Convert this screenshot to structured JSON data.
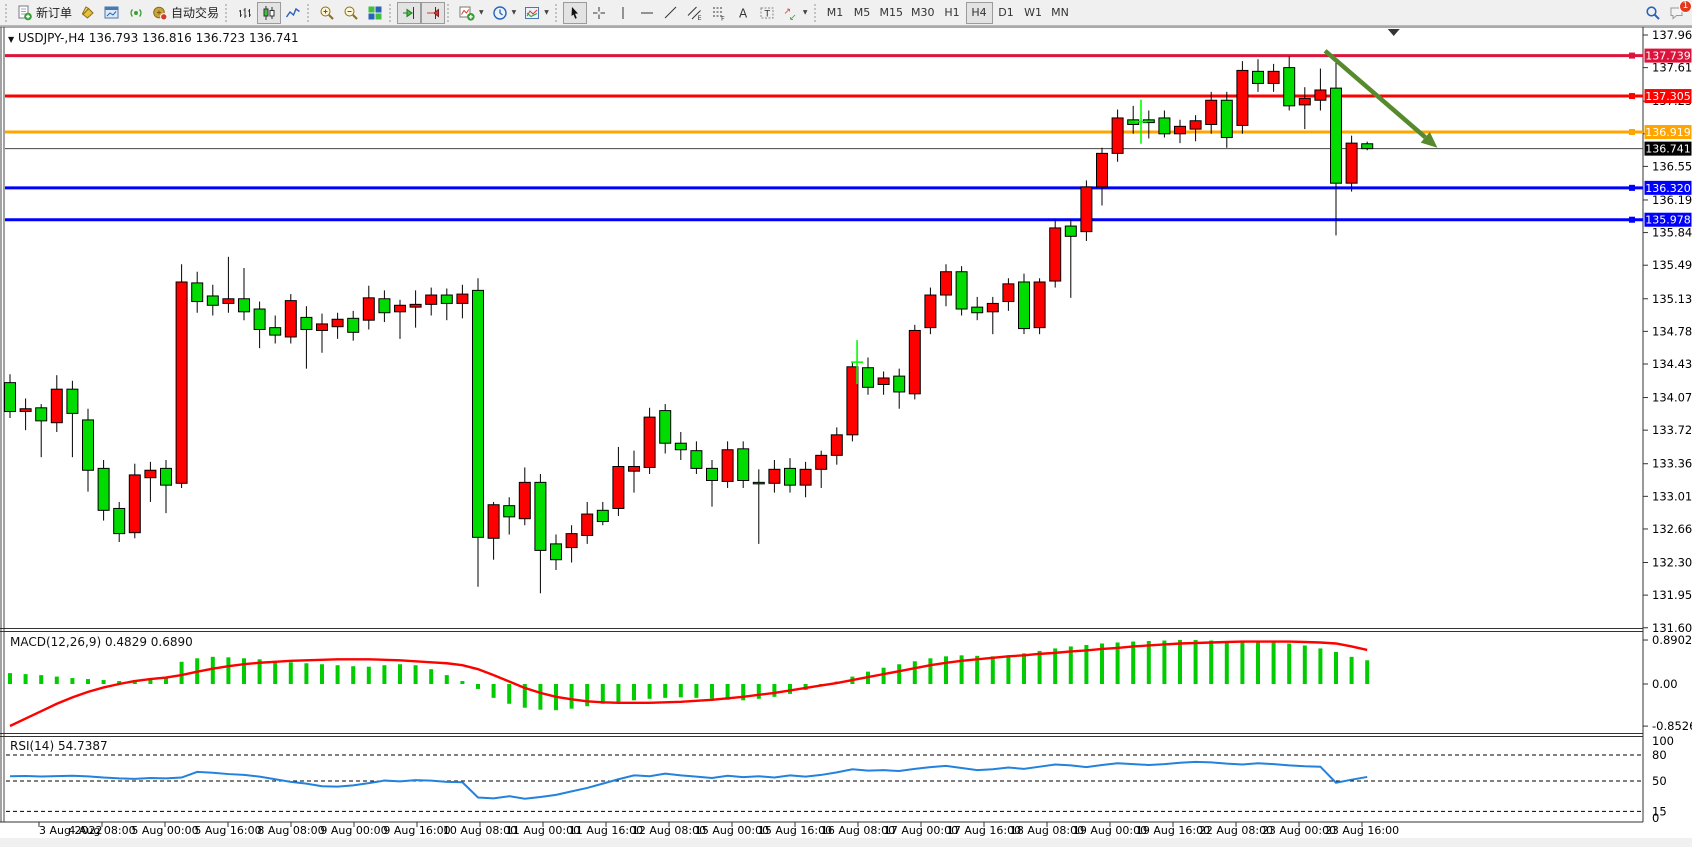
{
  "toolbar": {
    "groups": [
      {
        "items": [
          {
            "name": "new-order-button",
            "icon": "new-order-icon",
            "label": "新订单"
          },
          {
            "name": "styles-button",
            "icon": "paint-bucket-icon"
          },
          {
            "name": "market-watch-button",
            "icon": "chart-window-icon"
          },
          {
            "name": "broadcast-button",
            "icon": "broadcast-icon"
          },
          {
            "name": "auto-trading-button",
            "icon": "auto-trading-icon",
            "label": "自动交易"
          }
        ]
      },
      {
        "items": [
          {
            "name": "bar-chart-button",
            "icon": "bar-chart-icon"
          },
          {
            "name": "candlestick-button",
            "icon": "candlestick-icon",
            "pressed": true
          },
          {
            "name": "line-chart-button",
            "icon": "line-chart-icon"
          }
        ]
      },
      {
        "items": [
          {
            "name": "zoom-in-button",
            "icon": "zoom-in-icon"
          },
          {
            "name": "zoom-out-button",
            "icon": "zoom-out-icon"
          },
          {
            "name": "tile-windows-button",
            "icon": "tile-windows-icon"
          }
        ]
      },
      {
        "items": [
          {
            "name": "auto-scroll-button",
            "icon": "auto-scroll-icon",
            "pressed": true
          },
          {
            "name": "chart-shift-button",
            "icon": "chart-shift-icon",
            "pressed": true
          }
        ]
      },
      {
        "items": [
          {
            "name": "indicators-button",
            "icon": "indicators-icon",
            "caret": true
          },
          {
            "name": "periods-button",
            "icon": "periods-icon",
            "caret": true
          },
          {
            "name": "templates-button",
            "icon": "templates-icon",
            "caret": true
          }
        ]
      },
      {
        "items": [
          {
            "name": "cursor-button",
            "icon": "cursor-icon",
            "pressed": true
          },
          {
            "name": "crosshair-button",
            "icon": "crosshair-icon"
          },
          {
            "name": "vertical-line-button",
            "icon": "vertical-line-icon"
          },
          {
            "name": "horizontal-line-button",
            "icon": "horizontal-line-icon"
          },
          {
            "name": "trendline-button",
            "icon": "trendline-icon"
          },
          {
            "name": "channel-button",
            "icon": "channel-icon"
          },
          {
            "name": "fibonacci-button",
            "icon": "fibonacci-icon"
          },
          {
            "name": "text-button",
            "icon": "text-icon"
          },
          {
            "name": "label-button",
            "icon": "label-icon"
          },
          {
            "name": "arrows-button",
            "icon": "arrows-icon",
            "caret": true
          }
        ]
      }
    ],
    "timeframes": [
      {
        "label": "M1"
      },
      {
        "label": "M5"
      },
      {
        "label": "M15"
      },
      {
        "label": "M30"
      },
      {
        "label": "H1"
      },
      {
        "label": "H4",
        "pressed": true
      },
      {
        "label": "D1"
      },
      {
        "label": "W1"
      },
      {
        "label": "MN"
      }
    ],
    "right": [
      {
        "name": "search-button",
        "icon": "search-icon"
      },
      {
        "name": "chat-button",
        "icon": "chat-icon",
        "badge": "1"
      }
    ]
  },
  "header": {
    "title": "USDJPY-,H4",
    "ohlc": "136.793 136.816 136.723 136.741"
  },
  "macd_label": {
    "name": "MACD(12,26,9)",
    "values": "0.4829 0.6890"
  },
  "rsi_label": {
    "name": "RSI(14)",
    "values": "54.7387"
  },
  "colors": {
    "bull": "#FF0000",
    "bear": "#00DC00",
    "wick": "#000000",
    "macd_bar": "#00CC00",
    "macd_signal": "#FF0000",
    "rsi_line": "#2282DD",
    "arrow": "#578A2E",
    "marker": "#00FF00",
    "bid_label_bg": "#000000"
  },
  "price_axis": {
    "ticks": [
      "137.960",
      "137.610",
      "137.250",
      "136.900",
      "136.550",
      "136.190",
      "135.840",
      "135.490",
      "135.130",
      "134.780",
      "134.430",
      "134.070",
      "133.720",
      "133.360",
      "133.010",
      "132.660",
      "132.300",
      "131.950",
      "131.600"
    ]
  },
  "macd_axis": {
    "ticks": [
      {
        "v": 0.8902,
        "label": "0.8902"
      },
      {
        "v": 0.0,
        "label": "0.00"
      },
      {
        "v": -0.8526,
        "label": "-0.8526"
      }
    ]
  },
  "rsi_axis": {
    "ticks": [
      {
        "v": 100,
        "label": "100"
      },
      {
        "v": 80,
        "label": "80"
      },
      {
        "v": 50,
        "label": "50"
      },
      {
        "v": 15,
        "label": "15"
      },
      {
        "v": 0,
        "label": "0"
      }
    ],
    "dashed_levels": [
      80,
      50,
      15
    ]
  },
  "time_axis": [
    "3 Aug 2022",
    "4 Aug 08:00",
    "5 Aug 00:00",
    "5 Aug 16:00",
    "8 Aug 08:00",
    "9 Aug 00:00",
    "9 Aug 16:00",
    "10 Aug 08:00",
    "11 Aug 00:00",
    "11 Aug 16:00",
    "12 Aug 08:00",
    "15 Aug 00:00",
    "15 Aug 16:00",
    "16 Aug 08:00",
    "17 Aug 00:00",
    "17 Aug 16:00",
    "18 Aug 08:00",
    "19 Aug 00:00",
    "19 Aug 16:00",
    "22 Aug 08:00",
    "23 Aug 00:00",
    "23 Aug 16:00"
  ],
  "chart_data": {
    "type": "candlestick",
    "symbol": "USDJPY-",
    "timeframe": "H4",
    "current_bar": {
      "open": 136.793,
      "high": 136.816,
      "low": 136.723,
      "close": 136.741
    },
    "ylim": [
      131.6,
      137.96
    ],
    "levels": [
      {
        "price": 137.739,
        "label": "137.739",
        "color": "#DC143C"
      },
      {
        "price": 137.305,
        "label": "137.305",
        "color": "#FF0000"
      },
      {
        "price": 136.919,
        "label": "136.919",
        "color": "#FFA500"
      },
      {
        "price": 136.32,
        "label": "136.320",
        "color": "#0000FF"
      },
      {
        "price": 135.978,
        "label": "135.978",
        "color": "#0000FF"
      }
    ],
    "bid": {
      "price": 136.741,
      "label": "136.741"
    },
    "candles": [
      [
        134.23,
        134.32,
        133.85,
        133.92
      ],
      [
        133.92,
        134.06,
        133.72,
        133.95
      ],
      [
        133.96,
        134.0,
        133.43,
        133.82
      ],
      [
        133.8,
        134.31,
        133.7,
        134.16
      ],
      [
        134.16,
        134.25,
        133.43,
        133.9
      ],
      [
        133.83,
        133.95,
        133.06,
        133.29
      ],
      [
        133.31,
        133.4,
        132.75,
        132.86
      ],
      [
        132.88,
        132.95,
        132.52,
        132.61
      ],
      [
        132.62,
        133.36,
        132.56,
        133.24
      ],
      [
        133.21,
        133.38,
        132.95,
        133.29
      ],
      [
        133.31,
        133.4,
        132.83,
        133.13
      ],
      [
        133.15,
        135.5,
        133.1,
        135.31
      ],
      [
        135.3,
        135.42,
        134.98,
        135.1
      ],
      [
        135.16,
        135.28,
        134.95,
        135.06
      ],
      [
        135.08,
        135.58,
        134.98,
        135.13
      ],
      [
        135.13,
        135.46,
        134.9,
        134.99
      ],
      [
        135.02,
        135.1,
        134.6,
        134.8
      ],
      [
        134.82,
        134.95,
        134.65,
        134.74
      ],
      [
        134.72,
        135.18,
        134.65,
        135.11
      ],
      [
        134.93,
        135.05,
        134.38,
        134.8
      ],
      [
        134.79,
        134.97,
        134.55,
        134.86
      ],
      [
        134.83,
        134.98,
        134.7,
        134.91
      ],
      [
        134.92,
        135.0,
        134.68,
        134.77
      ],
      [
        134.9,
        135.27,
        134.8,
        135.14
      ],
      [
        135.13,
        135.22,
        134.88,
        134.98
      ],
      [
        134.99,
        135.12,
        134.7,
        135.06
      ],
      [
        135.04,
        135.22,
        134.82,
        135.07
      ],
      [
        135.07,
        135.25,
        134.95,
        135.17
      ],
      [
        135.17,
        135.24,
        134.9,
        135.08
      ],
      [
        135.08,
        135.28,
        134.92,
        135.18
      ],
      [
        135.22,
        135.35,
        132.04,
        132.57
      ],
      [
        132.56,
        132.95,
        132.33,
        132.92
      ],
      [
        132.91,
        133.0,
        132.6,
        132.79
      ],
      [
        132.77,
        133.32,
        132.7,
        133.16
      ],
      [
        133.16,
        133.25,
        131.97,
        132.43
      ],
      [
        132.5,
        132.6,
        132.22,
        132.33
      ],
      [
        132.46,
        132.7,
        132.3,
        132.61
      ],
      [
        132.59,
        132.95,
        132.5,
        132.82
      ],
      [
        132.86,
        132.95,
        132.7,
        132.74
      ],
      [
        132.88,
        133.54,
        132.8,
        133.33
      ],
      [
        133.28,
        133.5,
        133.05,
        133.33
      ],
      [
        133.32,
        133.96,
        133.25,
        133.86
      ],
      [
        133.93,
        134.0,
        133.47,
        133.58
      ],
      [
        133.58,
        133.7,
        133.4,
        133.51
      ],
      [
        133.5,
        133.6,
        133.25,
        133.31
      ],
      [
        133.31,
        133.4,
        132.9,
        133.18
      ],
      [
        133.17,
        133.6,
        133.1,
        133.51
      ],
      [
        133.52,
        133.6,
        133.1,
        133.18
      ],
      [
        133.16,
        133.3,
        132.5,
        133.15
      ],
      [
        133.15,
        133.4,
        133.05,
        133.3
      ],
      [
        133.31,
        133.42,
        133.05,
        133.13
      ],
      [
        133.13,
        133.38,
        133.0,
        133.3
      ],
      [
        133.3,
        133.5,
        133.1,
        133.45
      ],
      [
        133.45,
        133.75,
        133.35,
        133.67
      ],
      [
        133.67,
        134.45,
        133.6,
        134.4
      ],
      [
        134.39,
        134.5,
        134.1,
        134.18
      ],
      [
        134.21,
        134.35,
        134.1,
        134.28
      ],
      [
        134.3,
        134.38,
        133.95,
        134.13
      ],
      [
        134.11,
        134.85,
        134.05,
        134.79
      ],
      [
        134.82,
        135.25,
        134.75,
        135.17
      ],
      [
        135.17,
        135.5,
        135.05,
        135.42
      ],
      [
        135.42,
        135.48,
        134.95,
        135.02
      ],
      [
        135.04,
        135.15,
        134.9,
        134.98
      ],
      [
        134.99,
        135.15,
        134.75,
        135.08
      ],
      [
        135.1,
        135.35,
        135.0,
        135.29
      ],
      [
        135.31,
        135.4,
        134.75,
        134.81
      ],
      [
        134.82,
        135.35,
        134.75,
        135.31
      ],
      [
        135.32,
        135.98,
        135.25,
        135.89
      ],
      [
        135.91,
        135.98,
        135.14,
        135.8
      ],
      [
        135.85,
        136.4,
        135.75,
        136.33
      ],
      [
        136.33,
        136.75,
        136.13,
        136.69
      ],
      [
        136.69,
        137.16,
        136.6,
        137.07
      ],
      [
        137.05,
        137.2,
        136.9,
        137.0
      ],
      [
        137.05,
        137.15,
        136.85,
        137.02
      ],
      [
        137.07,
        137.15,
        136.86,
        136.9
      ],
      [
        136.9,
        137.05,
        136.8,
        136.98
      ],
      [
        136.95,
        137.1,
        136.82,
        137.04
      ],
      [
        137.0,
        137.35,
        136.9,
        137.26
      ],
      [
        137.26,
        137.35,
        136.75,
        136.86
      ],
      [
        136.99,
        137.68,
        136.9,
        137.58
      ],
      [
        137.57,
        137.7,
        137.35,
        137.44
      ],
      [
        137.44,
        137.65,
        137.35,
        137.57
      ],
      [
        137.61,
        137.73,
        137.15,
        137.2
      ],
      [
        137.21,
        137.4,
        136.95,
        137.28
      ],
      [
        137.26,
        137.6,
        137.15,
        137.37
      ],
      [
        137.39,
        137.66,
        135.81,
        136.37
      ],
      [
        136.37,
        136.88,
        136.28,
        136.8
      ],
      [
        136.793,
        136.816,
        136.723,
        136.741
      ]
    ],
    "markers": [
      {
        "bar": 54.3,
        "price": 134.45
      },
      {
        "bar": 72.5,
        "price": 137.03
      }
    ],
    "trend_arrow": {
      "from_bar": 84.3,
      "from_price": 137.79,
      "to_bar": 91.5,
      "to_price": 136.75
    },
    "shift_marker_bar": 88.7,
    "indicators": [
      {
        "type": "MACD",
        "params": [
          12,
          26,
          9
        ],
        "current": [
          0.4829,
          0.689
        ],
        "range": {
          "max": 0.8902,
          "min": -0.8526
        },
        "histogram": [
          0.22,
          0.2,
          0.18,
          0.15,
          0.12,
          0.1,
          0.08,
          0.06,
          0.08,
          0.1,
          0.12,
          0.45,
          0.52,
          0.55,
          0.54,
          0.52,
          0.5,
          0.47,
          0.44,
          0.42,
          0.4,
          0.38,
          0.36,
          0.35,
          0.38,
          0.4,
          0.38,
          0.3,
          0.18,
          0.06,
          -0.1,
          -0.28,
          -0.4,
          -0.48,
          -0.52,
          -0.53,
          -0.5,
          -0.45,
          -0.4,
          -0.36,
          -0.33,
          -0.3,
          -0.28,
          -0.27,
          -0.28,
          -0.3,
          -0.32,
          -0.33,
          -0.3,
          -0.26,
          -0.2,
          -0.12,
          -0.05,
          0.05,
          0.15,
          0.25,
          0.33,
          0.4,
          0.46,
          0.52,
          0.56,
          0.58,
          0.57,
          0.56,
          0.58,
          0.62,
          0.67,
          0.72,
          0.76,
          0.79,
          0.82,
          0.84,
          0.86,
          0.87,
          0.88,
          0.89,
          0.89,
          0.88,
          0.87,
          0.86,
          0.85,
          0.84,
          0.82,
          0.78,
          0.72,
          0.65,
          0.55,
          0.48
        ],
        "signal": [
          -0.85,
          -0.7,
          -0.55,
          -0.4,
          -0.27,
          -0.16,
          -0.07,
          0.0,
          0.06,
          0.1,
          0.13,
          0.18,
          0.25,
          0.31,
          0.36,
          0.4,
          0.43,
          0.45,
          0.47,
          0.48,
          0.49,
          0.5,
          0.5,
          0.5,
          0.49,
          0.48,
          0.46,
          0.44,
          0.42,
          0.38,
          0.3,
          0.18,
          0.05,
          -0.08,
          -0.18,
          -0.26,
          -0.31,
          -0.35,
          -0.37,
          -0.38,
          -0.38,
          -0.38,
          -0.37,
          -0.36,
          -0.34,
          -0.32,
          -0.29,
          -0.26,
          -0.22,
          -0.18,
          -0.13,
          -0.08,
          -0.03,
          0.02,
          0.08,
          0.14,
          0.2,
          0.26,
          0.32,
          0.38,
          0.43,
          0.47,
          0.5,
          0.53,
          0.56,
          0.58,
          0.61,
          0.63,
          0.66,
          0.68,
          0.71,
          0.73,
          0.76,
          0.78,
          0.8,
          0.82,
          0.83,
          0.84,
          0.85,
          0.86,
          0.86,
          0.86,
          0.86,
          0.85,
          0.84,
          0.82,
          0.76,
          0.69
        ]
      },
      {
        "type": "RSI",
        "params": [
          14
        ],
        "current": 54.7387,
        "levels": [
          80,
          50,
          15
        ],
        "values": [
          55.5,
          55.8,
          55.2,
          55.6,
          56.0,
          55.4,
          54.0,
          53.0,
          52.5,
          53.5,
          53.0,
          54.0,
          60.5,
          59.5,
          58.0,
          57.0,
          55.0,
          52.0,
          49.0,
          47.0,
          44.0,
          43.5,
          45.0,
          47.5,
          50.5,
          49.5,
          51.0,
          50.5,
          49.0,
          48.5,
          31.0,
          30.0,
          32.5,
          29.5,
          31.5,
          34.0,
          38.0,
          42.0,
          47.0,
          52.0,
          56.5,
          55.5,
          58.5,
          56.5,
          55.0,
          53.5,
          56.0,
          54.5,
          55.5,
          54.0,
          56.5,
          55.0,
          57.0,
          60.0,
          63.5,
          62.0,
          62.5,
          61.5,
          64.0,
          66.0,
          67.5,
          65.0,
          62.5,
          63.5,
          65.5,
          64.0,
          66.5,
          69.0,
          68.0,
          66.0,
          68.5,
          70.5,
          69.5,
          68.5,
          69.5,
          71.0,
          72.0,
          71.5,
          70.0,
          69.0,
          70.5,
          69.5,
          68.0,
          67.0,
          66.5,
          48.0,
          51.5,
          54.7
        ]
      }
    ]
  }
}
